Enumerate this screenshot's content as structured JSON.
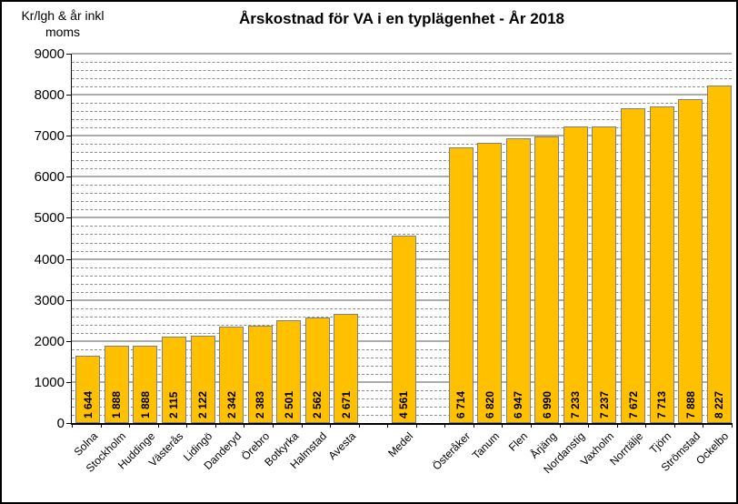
{
  "chart_data": {
    "type": "bar",
    "title": "Årskostnad för VA i en typlägenhet - År 2018",
    "y_axis_label": "Kr/lgh & år inkl\nmoms",
    "xlabel": "",
    "ylabel": "Kr/lgh & år inkl moms",
    "ylim": [
      0,
      9000
    ],
    "y_major_step": 1000,
    "y_minor_step": 200,
    "grid": "horizontal, major solid + minor dashed",
    "legend": "none",
    "categories": [
      "Solna",
      "Stockholm",
      "Huddinge",
      "Västerås",
      "Lidingö",
      "Danderyd",
      "Örebro",
      "Botkyrka",
      "Halmstad",
      "Avesta",
      "Medel",
      "Österåker",
      "Tanum",
      "Flen",
      "Årjäng",
      "Nordanstig",
      "Vaxholm",
      "Norrtälje",
      "Tjörn",
      "Strömstad",
      "Ockelbo"
    ],
    "values": [
      1644,
      1888,
      1888,
      2115,
      2122,
      2342,
      2383,
      2501,
      2562,
      2671,
      4561,
      6714,
      6820,
      6947,
      6990,
      7233,
      7237,
      7672,
      7713,
      7888,
      8227
    ],
    "value_labels": [
      "1 644",
      "1 888",
      "1 888",
      "2 115",
      "2 122",
      "2 342",
      "2 383",
      "2 501",
      "2 562",
      "2 671",
      "4 561",
      "6 714",
      "6 820",
      "6 947",
      "6 990",
      "7 233",
      "7 237",
      "7 672",
      "7 713",
      "7 888",
      "8 227"
    ],
    "spacer_after": [
      "Avesta",
      "Medel"
    ],
    "bar_color": "#FFC000",
    "bar_border_color": "#808080",
    "grid_major_color": "#ababab",
    "grid_minor_color": "#8f8f8f",
    "axis_color": "#000000",
    "text_color": "#000000"
  }
}
